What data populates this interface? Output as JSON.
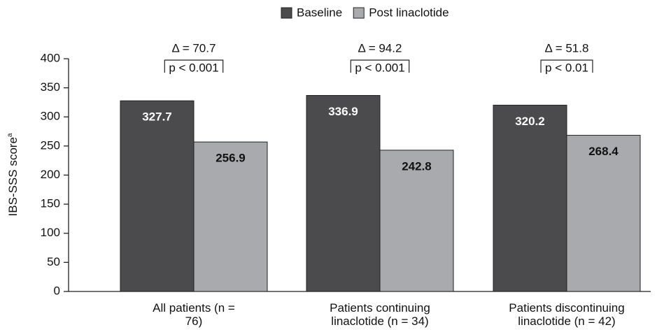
{
  "chart_data": {
    "type": "bar",
    "categories": [
      "All patients (n = 76)",
      "Patients continuing linaclotide (n = 34)",
      "Patients discontinuing linaclotide (n = 42)"
    ],
    "series": [
      {
        "name": "Baseline",
        "color": "#4b4b4d",
        "values": [
          327.7,
          336.9,
          320.2
        ]
      },
      {
        "name": "Post linaclotide",
        "color": "#a8aaad",
        "values": [
          256.9,
          242.8,
          268.4
        ]
      }
    ],
    "y_label": "IBS-SSS score",
    "y_label_sup": "a",
    "ylim": [
      0,
      400
    ],
    "yticks": [
      0,
      50,
      100,
      150,
      200,
      250,
      300,
      350,
      400
    ],
    "annotations": [
      {
        "delta": "Δ = 70.7",
        "p": "p < 0.001"
      },
      {
        "delta": "Δ = 94.2",
        "p": "p < 0.001"
      },
      {
        "delta": "Δ = 51.8",
        "p": "p < 0.01"
      }
    ],
    "legend": "top"
  }
}
